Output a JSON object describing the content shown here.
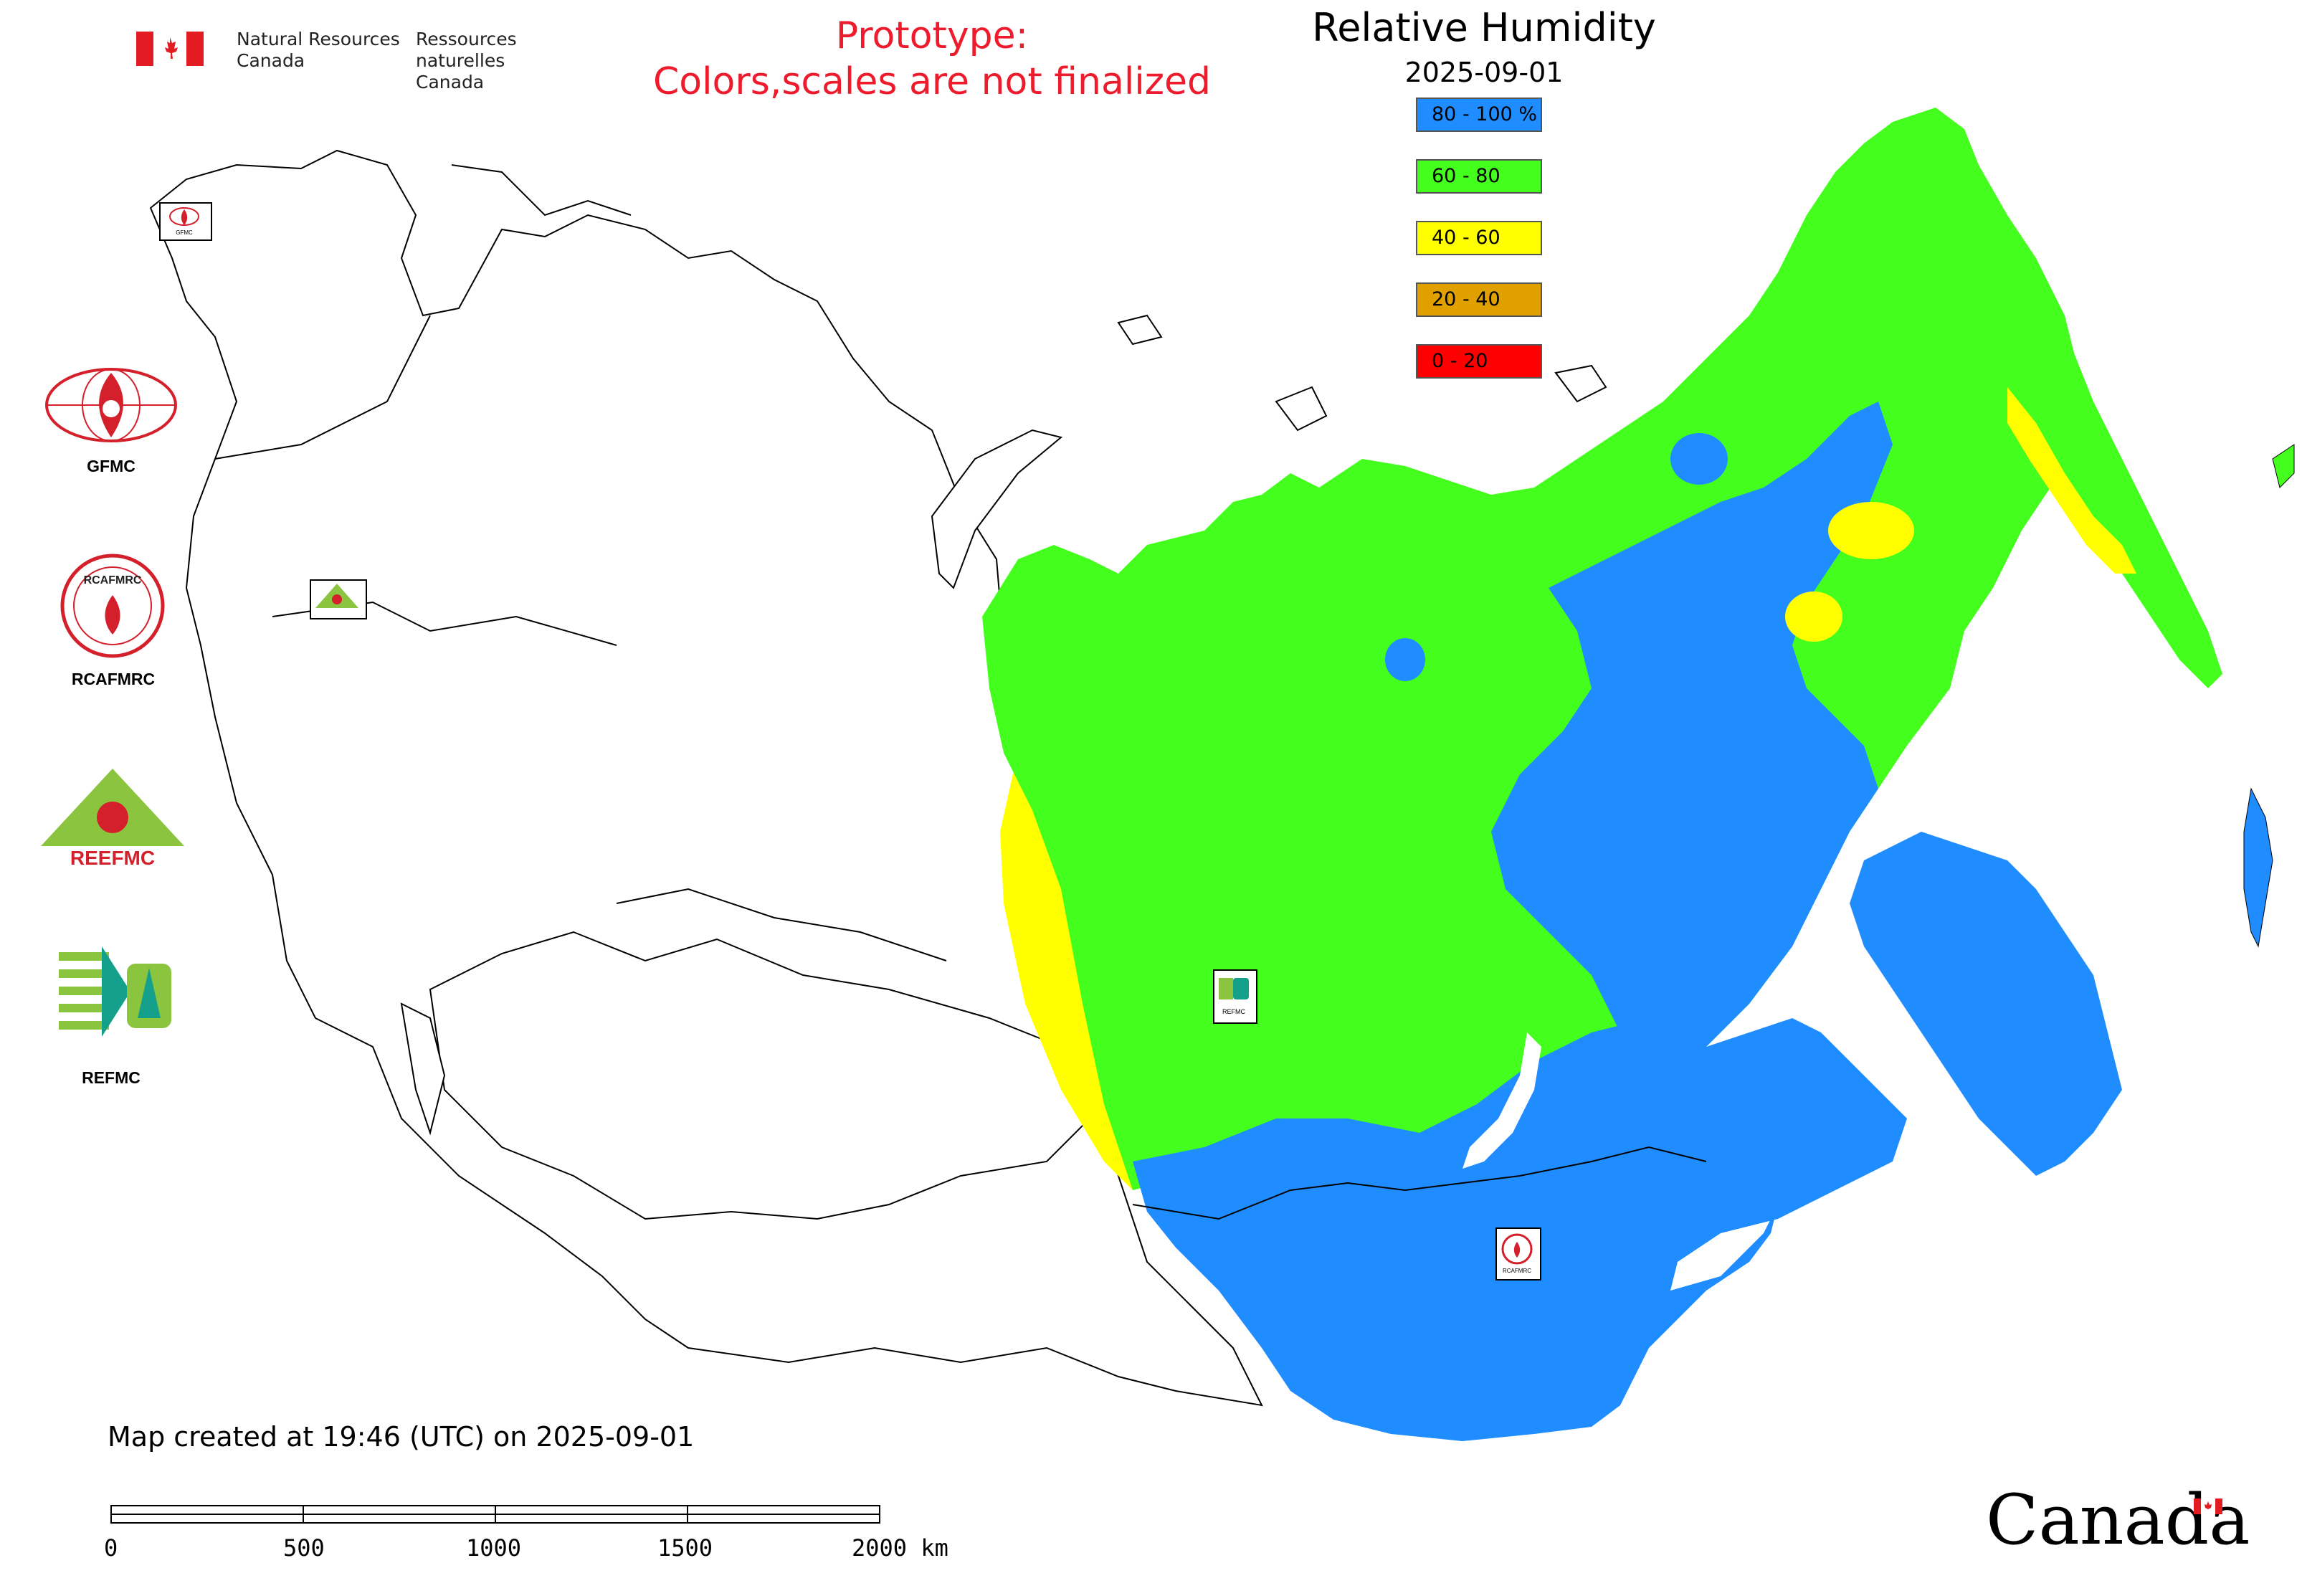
{
  "header": {
    "nrcan_en": [
      "Natural Resources",
      "Canada"
    ],
    "nrcan_fr": [
      "Ressources naturelles",
      "Canada"
    ],
    "prototype_lines": [
      "Prototype:",
      "Colors,scales are not finalized"
    ]
  },
  "legend": {
    "title": "Relative Humidity",
    "date": "2025-09-01",
    "items": [
      {
        "label": "80 - 100 %",
        "color": "#1f8cff"
      },
      {
        "label": "60 - 80",
        "color": "#44ff1e"
      },
      {
        "label": "40 - 60",
        "color": "#ffff00"
      },
      {
        "label": "20 - 40",
        "color": "#e0a000"
      },
      {
        "label": "0 - 20",
        "color": "#ff0000"
      }
    ]
  },
  "organizations": [
    {
      "name": "GFMC"
    },
    {
      "name": "RCAFMRC"
    },
    {
      "name": "REEFMC"
    },
    {
      "name": "REFMC"
    }
  ],
  "logo_text": {
    "rcafmrc_logo": "RCAFMRC",
    "reefmc_logo": "REEFMC",
    "gfmc_small": "GFMC",
    "rcafmrc_small": "RCAFMRC",
    "refmc_small": "REFMC"
  },
  "footer": {
    "created": "Map created at 19:46 (UTC) on 2025-09-01",
    "scale_labels": [
      "0",
      "500",
      "1000",
      "1500",
      "2000 km"
    ],
    "canada_wordmark": "Canada"
  },
  "colors": {
    "blue": "#1f8cff",
    "green": "#44ff1e",
    "yellow": "#ffff00",
    "red": "#ff0000",
    "prototype_red": "#ee1b2d"
  }
}
